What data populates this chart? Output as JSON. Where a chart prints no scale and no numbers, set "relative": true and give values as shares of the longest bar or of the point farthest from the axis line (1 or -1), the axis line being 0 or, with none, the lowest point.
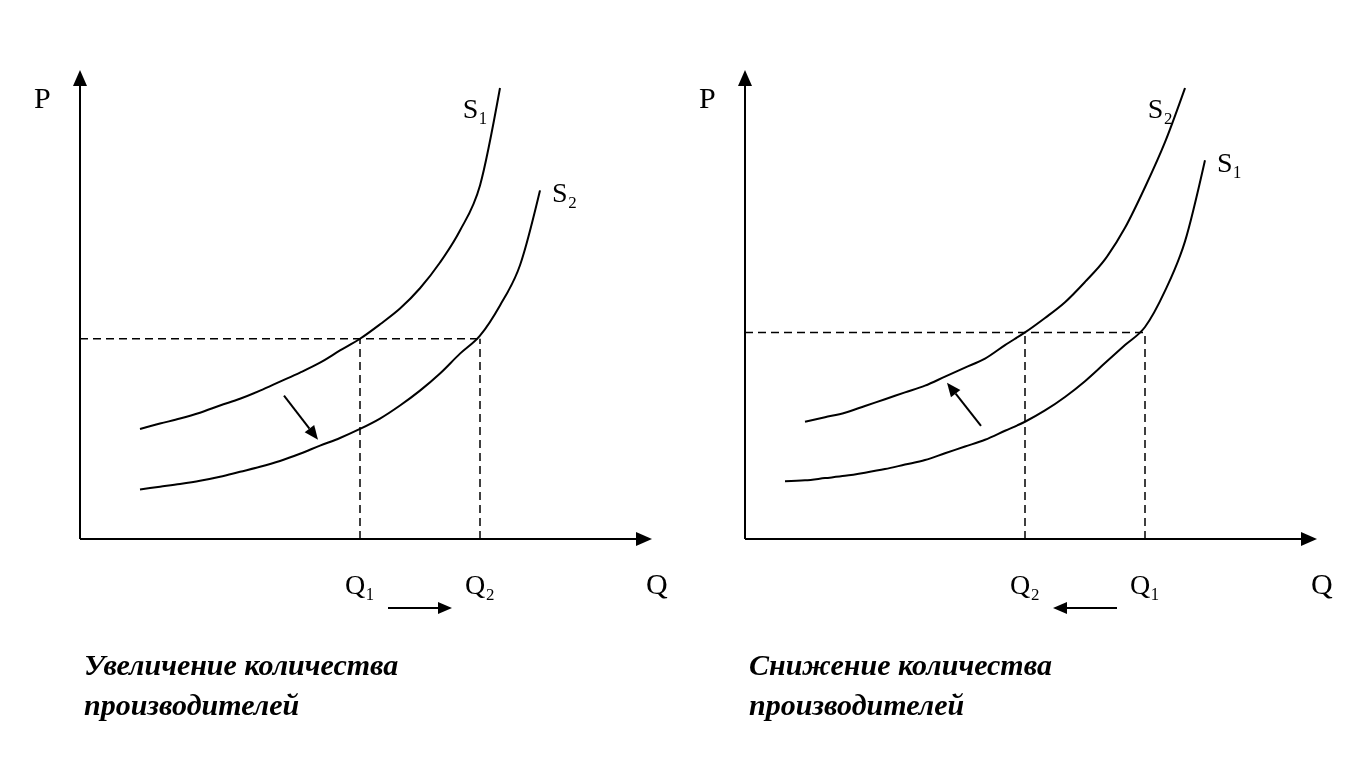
{
  "chart_data": [
    {
      "type": "line",
      "title": "Увеличение количества производителей",
      "xlabel": "Q",
      "ylabel": "P",
      "relative": true,
      "tick_labels": "x",
      "line_style": "solid",
      "categories": [
        null,
        null,
        null,
        null,
        null,
        null,
        null,
        null,
        null,
        null,
        null,
        null,
        null,
        null,
        "Q₁",
        null,
        null,
        null,
        null,
        null,
        "Q₂",
        null,
        null,
        null,
        null,
        null,
        null,
        null
      ],
      "series": [
        {
          "name": "S₁",
          "color": "#000000",
          "values": [
            null,
            null,
            null,
            0.244,
            0.256,
            0.267,
            0.28,
            0.296,
            0.311,
            0.329,
            0.349,
            0.369,
            0.391,
            0.418,
            0.444,
            0.476,
            0.511,
            0.556,
            0.613,
            0.684,
            0.784,
            1,
            null,
            null,
            null,
            null,
            null,
            null
          ]
        },
        {
          "name": "S₂",
          "color": "#000000",
          "values": [
            null,
            null,
            null,
            0.11,
            0.116,
            0.122,
            0.129,
            0.138,
            0.149,
            0.16,
            0.173,
            0.189,
            0.207,
            0.224,
            0.244,
            0.267,
            0.296,
            0.329,
            0.367,
            0.411,
            0.451,
            0.518,
            0.607,
            0.773,
            null,
            null,
            null,
            null
          ]
        }
      ],
      "ref_lines": [
        {
          "axis": "y",
          "value": 0.444,
          "line_style": "dashed"
        }
      ]
    },
    {
      "type": "line",
      "title": "Снижение количества производителей",
      "xlabel": "Q",
      "ylabel": "P",
      "relative": true,
      "tick_labels": "x",
      "line_style": "solid",
      "categories": [
        null,
        null,
        null,
        null,
        null,
        null,
        null,
        null,
        null,
        null,
        null,
        null,
        null,
        null,
        "Q₂",
        null,
        null,
        null,
        null,
        null,
        "Q₁",
        null,
        null,
        null,
        null,
        null,
        null,
        null
      ],
      "series": [
        {
          "name": "S₁",
          "color": "#000000",
          "values": [
            null,
            null,
            0.128,
            0.13,
            0.135,
            0.14,
            0.147,
            0.155,
            0.165,
            0.175,
            0.19,
            0.205,
            0.22,
            0.24,
            0.26,
            0.285,
            0.315,
            0.35,
            0.39,
            0.43,
            0.47,
            0.55,
            0.66,
            0.84,
            null,
            null,
            null,
            null
          ]
        },
        {
          "name": "S₂",
          "color": "#000000",
          "values": [
            null,
            null,
            null,
            0.26,
            0.27,
            0.28,
            0.295,
            0.31,
            0.325,
            0.34,
            0.36,
            0.38,
            0.4,
            0.43,
            0.458,
            0.49,
            0.525,
            0.57,
            0.62,
            0.69,
            0.78,
            0.88,
            1,
            null,
            null,
            null,
            null,
            null
          ]
        }
      ],
      "ref_lines": [
        {
          "axis": "y",
          "value": 0.458,
          "line_style": "dashed"
        }
      ]
    }
  ]
}
